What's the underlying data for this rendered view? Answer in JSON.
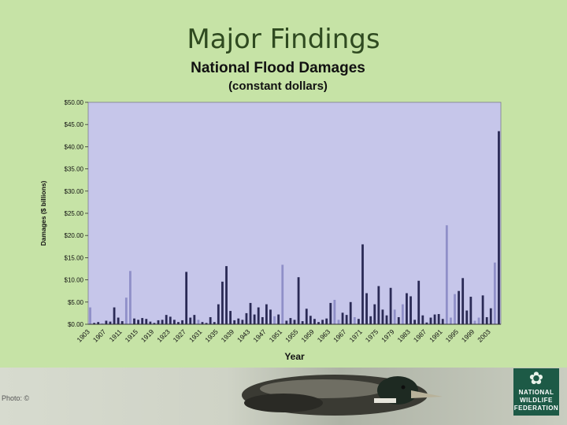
{
  "slide": {
    "title": "Major Findings",
    "credit": "Photo: ©"
  },
  "logo": {
    "line1": "NATIONAL",
    "line2": "WILDLIFE",
    "line3": "FEDERATION"
  },
  "colors": {
    "background": "#c6e3a6",
    "plot_area": "#c6c6ea",
    "bar_dark": "#2a2a55",
    "bar_light": "#8f8fc8"
  },
  "chart_data": {
    "type": "bar",
    "title": "National Flood Damages",
    "subtitle": "(constant dollars)",
    "xlabel": "Year",
    "ylabel": "Damages ($ billions)",
    "ylim": [
      0,
      50
    ],
    "yticks": [
      "$0.00",
      "$5.00",
      "$10.00",
      "$15.00",
      "$20.00",
      "$25.00",
      "$30.00",
      "$35.00",
      "$40.00",
      "$45.00",
      "$50.00"
    ],
    "xticks": [
      "1903",
      "1907",
      "1911",
      "1915",
      "1919",
      "1923",
      "1927",
      "1931",
      "1935",
      "1939",
      "1943",
      "1947",
      "1951",
      "1955",
      "1959",
      "1963",
      "1967",
      "1971",
      "1975",
      "1979",
      "1983",
      "1987",
      "1991",
      "1995",
      "1999",
      "2003"
    ],
    "grid": false,
    "legend": "none",
    "categories": [
      1903,
      1904,
      1905,
      1906,
      1907,
      1908,
      1909,
      1910,
      1911,
      1912,
      1913,
      1914,
      1915,
      1916,
      1917,
      1918,
      1919,
      1920,
      1921,
      1922,
      1923,
      1924,
      1925,
      1926,
      1927,
      1928,
      1929,
      1930,
      1931,
      1932,
      1933,
      1934,
      1935,
      1936,
      1937,
      1938,
      1939,
      1940,
      1941,
      1942,
      1943,
      1944,
      1945,
      1946,
      1947,
      1948,
      1949,
      1950,
      1951,
      1952,
      1953,
      1954,
      1955,
      1956,
      1957,
      1958,
      1959,
      1960,
      1961,
      1962,
      1963,
      1964,
      1965,
      1966,
      1967,
      1968,
      1969,
      1970,
      1971,
      1972,
      1973,
      1974,
      1975,
      1976,
      1977,
      1978,
      1979,
      1980,
      1981,
      1982,
      1983,
      1984,
      1985,
      1986,
      1987,
      1988,
      1989,
      1990,
      1991,
      1992,
      1993,
      1994,
      1995,
      1996,
      1997,
      1998,
      1999,
      2000,
      2001,
      2002,
      2003,
      2004,
      2005
    ],
    "values": [
      3.8,
      0.3,
      0.5,
      0.2,
      0.8,
      0.6,
      3.8,
      1.5,
      0.7,
      6.0,
      12.0,
      1.3,
      1.0,
      1.4,
      1.2,
      0.6,
      0.3,
      0.9,
      1.0,
      2.1,
      1.7,
      1.0,
      0.5,
      0.9,
      11.8,
      1.5,
      2.1,
      1.0,
      0.5,
      0.3,
      1.6,
      0.5,
      4.5,
      9.6,
      13.1,
      3.0,
      0.9,
      1.3,
      1.0,
      2.5,
      4.8,
      2.2,
      3.8,
      1.6,
      4.5,
      3.3,
      1.8,
      2.2,
      13.4,
      0.8,
      1.4,
      1.0,
      10.6,
      0.7,
      3.5,
      1.9,
      1.2,
      0.5,
      1.0,
      1.3,
      4.8,
      5.5,
      1.0,
      2.6,
      2.1,
      5.0,
      1.6,
      1.2,
      18.0,
      7.0,
      1.8,
      4.5,
      8.6,
      3.3,
      2.0,
      8.2,
      3.3,
      1.6,
      4.5,
      7.0,
      6.3,
      1.0,
      9.8,
      2.0,
      0.4,
      1.5,
      2.2,
      2.3,
      1.2,
      22.3,
      1.5,
      6.8,
      7.5,
      10.4,
      3.1,
      6.2,
      0.8,
      1.5,
      6.5,
      1.6,
      3.6,
      13.9,
      43.5
    ],
    "highlight_categories": [
      1903,
      1906,
      1912,
      1913,
      1930,
      1949,
      1951,
      1964,
      1965,
      1969,
      1979,
      1981,
      1992,
      1993,
      1994,
      1999,
      2000,
      2004
    ]
  }
}
